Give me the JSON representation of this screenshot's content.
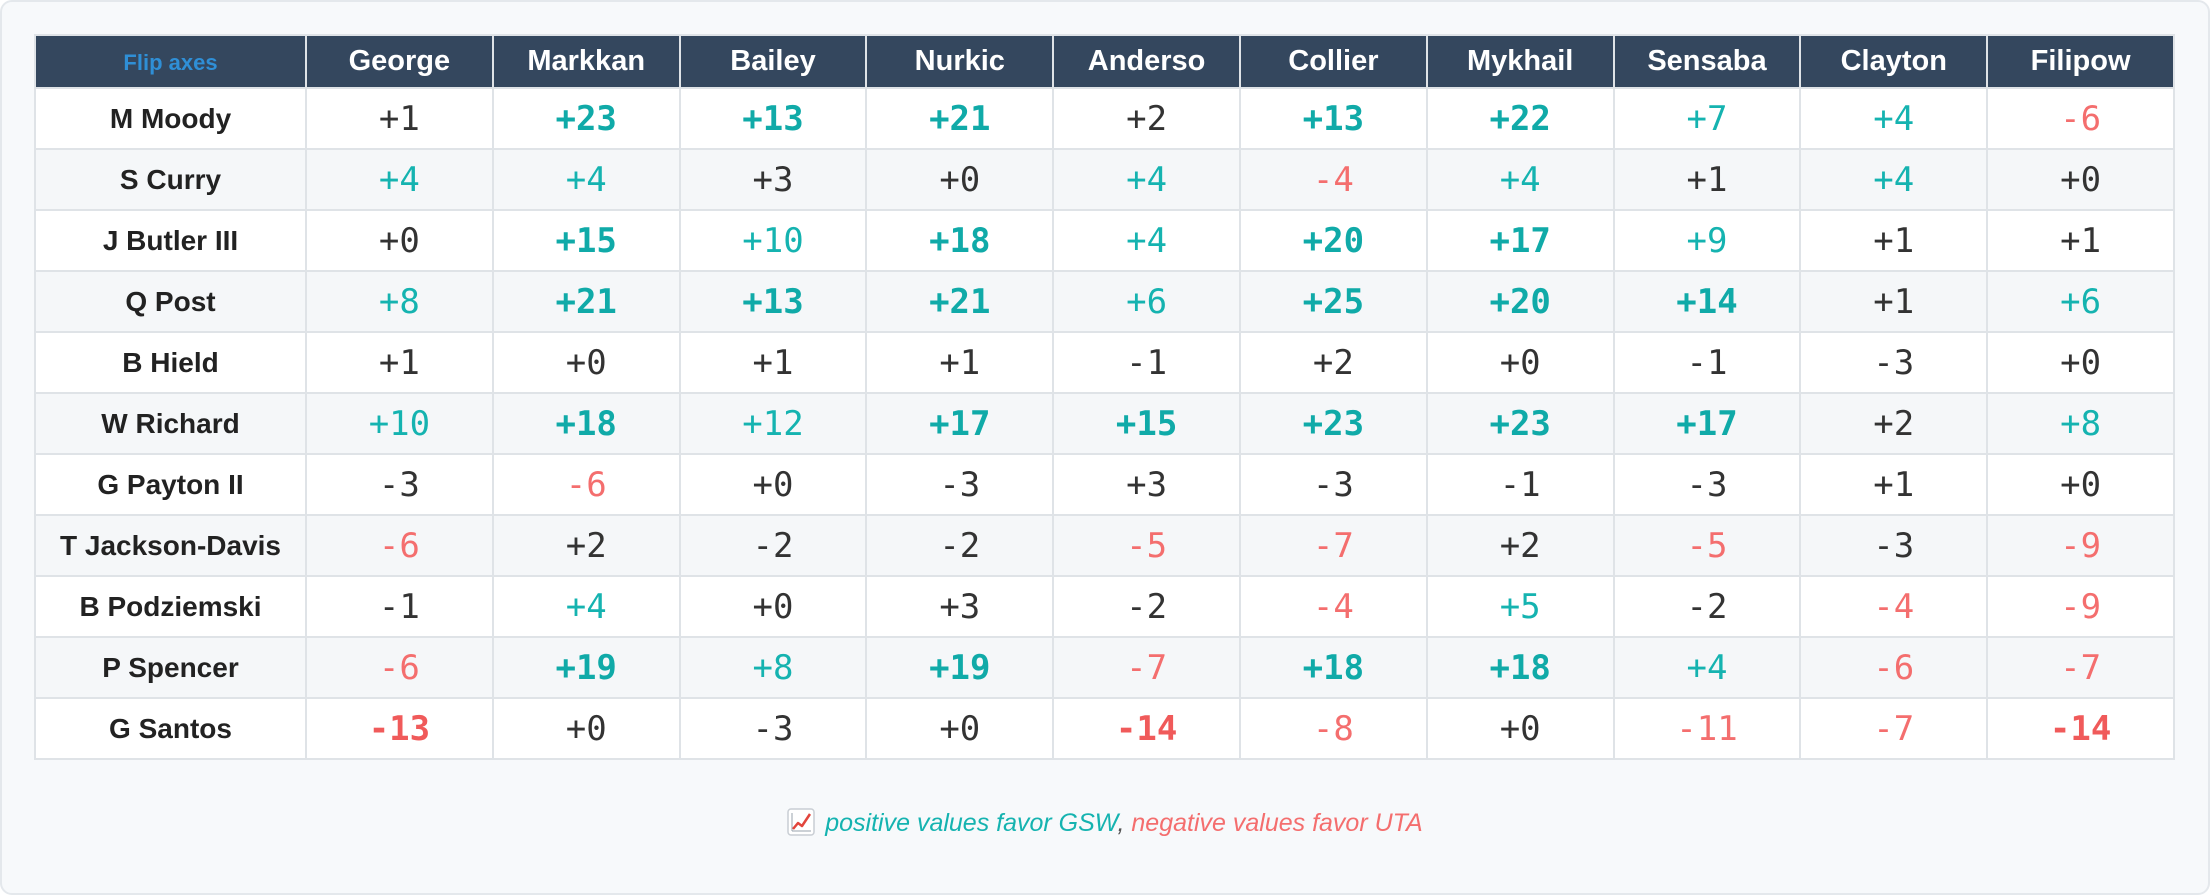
{
  "corner_label": "Flip axes",
  "columns": [
    "George",
    "Markkan",
    "Bailey",
    "Nurkic",
    "Anderso",
    "Collier",
    "Mykhail",
    "Sensaba",
    "Clayton",
    "Filipow"
  ],
  "rows": [
    {
      "name": "M Moody",
      "values": [
        "+1",
        "+23",
        "+13",
        "+21",
        "+2",
        "+13",
        "+22",
        "+7",
        "+4",
        "-6"
      ]
    },
    {
      "name": "S Curry",
      "values": [
        "+4",
        "+4",
        "+3",
        "+0",
        "+4",
        "-4",
        "+4",
        "+1",
        "+4",
        "+0"
      ]
    },
    {
      "name": "J Butler III",
      "values": [
        "+0",
        "+15",
        "+10",
        "+18",
        "+4",
        "+20",
        "+17",
        "+9",
        "+1",
        "+1"
      ]
    },
    {
      "name": "Q Post",
      "values": [
        "+8",
        "+21",
        "+13",
        "+21",
        "+6",
        "+25",
        "+20",
        "+14",
        "+1",
        "+6"
      ]
    },
    {
      "name": "B Hield",
      "values": [
        "+1",
        "+0",
        "+1",
        "+1",
        "-1",
        "+2",
        "+0",
        "-1",
        "-3",
        "+0"
      ]
    },
    {
      "name": "W Richard",
      "values": [
        "+10",
        "+18",
        "+12",
        "+17",
        "+15",
        "+23",
        "+23",
        "+17",
        "+2",
        "+8"
      ]
    },
    {
      "name": "G Payton II",
      "values": [
        "-3",
        "-6",
        "+0",
        "-3",
        "+3",
        "-3",
        "-1",
        "-3",
        "+1",
        "+0"
      ]
    },
    {
      "name": "T Jackson-Davis",
      "values": [
        "-6",
        "+2",
        "-2",
        "-2",
        "-5",
        "-7",
        "+2",
        "-5",
        "-3",
        "-9"
      ]
    },
    {
      "name": "B Podziemski",
      "values": [
        "-1",
        "+4",
        "+0",
        "+3",
        "-2",
        "-4",
        "+5",
        "-2",
        "-4",
        "-9"
      ]
    },
    {
      "name": "P Spencer",
      "values": [
        "-6",
        "+19",
        "+8",
        "+19",
        "-7",
        "+18",
        "+18",
        "+4",
        "-6",
        "-7"
      ]
    },
    {
      "name": "G Santos",
      "values": [
        "-13",
        "+0",
        "-3",
        "+0",
        "-14",
        "-8",
        "+0",
        "-11",
        "-7",
        "-14"
      ]
    }
  ],
  "footnote": {
    "icon": "chart-increasing-icon",
    "positive_text": "positive values favor GSW",
    "separator": ",",
    "negative_text": "negative values favor UTA"
  },
  "colors": {
    "header_bg": "#34475e",
    "positive": "#15b3b0",
    "negative": "#f46e6e",
    "neutral": "#333333",
    "flip_link": "#2f8fd6"
  }
}
